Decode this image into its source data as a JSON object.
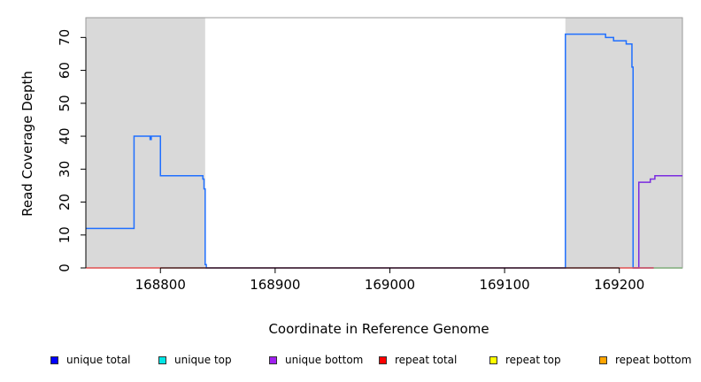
{
  "chart_data": {
    "type": "line",
    "title": "",
    "xlabel": "Coordinate in Reference Genome",
    "ylabel": "Read Coverage Depth",
    "xlim": [
      168735,
      169255
    ],
    "ylim": [
      0,
      76
    ],
    "x_ticks": [
      168800,
      168900,
      169000,
      169100,
      169200
    ],
    "y_ticks": [
      0,
      10,
      20,
      30,
      40,
      50,
      60,
      70
    ],
    "grid": false,
    "shaded_regions": [
      {
        "from": 168735,
        "to": 168839,
        "color": "#d9d9d9"
      },
      {
        "from": 169153,
        "to": 169255,
        "color": "#d9d9d9"
      }
    ],
    "series": [
      {
        "name": "unique total",
        "color": "#1f6fff",
        "step": true,
        "x": [
          168735,
          168777,
          168791,
          168792,
          168798,
          168800,
          168837,
          168838,
          168839,
          168840,
          169153,
          169188,
          169195,
          169206,
          169211,
          169212,
          169255
        ],
        "y": [
          12,
          40,
          39,
          40,
          40,
          28,
          27,
          24,
          1,
          0,
          71,
          70,
          69,
          68,
          61,
          0,
          0
        ]
      },
      {
        "name": "unique bottom",
        "color": "#7a2be0",
        "step": true,
        "x": [
          169212,
          169217,
          169227,
          169231,
          169255
        ],
        "y": [
          0,
          26,
          27,
          28,
          28
        ]
      },
      {
        "name": "repeat total",
        "color": "#e05050",
        "step": true,
        "x": [
          168735,
          169255
        ],
        "y": [
          0,
          0
        ]
      },
      {
        "name": "repeat top",
        "color": "#90d090",
        "step": true,
        "x": [
          169230,
          169255
        ],
        "y": [
          0,
          0
        ]
      }
    ]
  },
  "legend": [
    {
      "label": "unique total",
      "color": "#0000ff"
    },
    {
      "label": "unique top",
      "color": "#00e5e5"
    },
    {
      "label": "unique bottom",
      "color": "#a020f0"
    },
    {
      "label": "repeat total",
      "color": "#ff0000"
    },
    {
      "label": "repeat top",
      "color": "#ffff00"
    },
    {
      "label": "repeat bottom",
      "color": "#ffa500"
    }
  ]
}
